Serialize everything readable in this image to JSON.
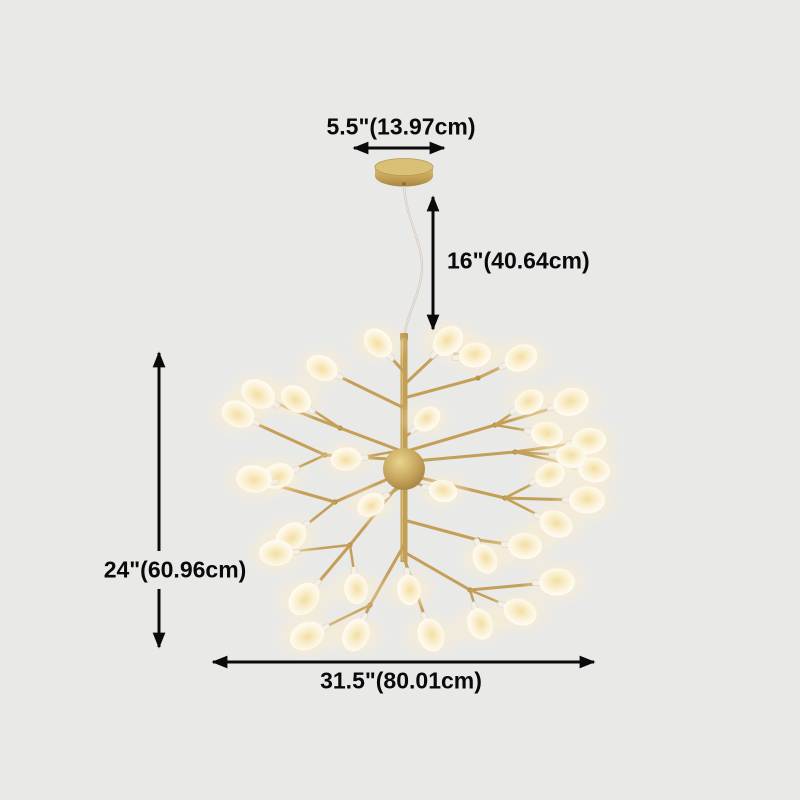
{
  "page": {
    "background": "#e9e9e8"
  },
  "diagram": {
    "labels": {
      "canopy_width": "5.5\"(13.97cm)",
      "drop_height": "16\"(40.64cm)",
      "fixture_height": "24\"(60.96cm)",
      "fixture_width": "31.5\"(80.01cm)"
    },
    "colors": {
      "arrow": "#0a0a0a",
      "label_text": "#0a0a0a",
      "metal_gold": "#c49f58",
      "leaf_warm_white": "#f9edcb",
      "leaf_glow": "#ffeec4",
      "cord": "#d2c7b8"
    }
  }
}
